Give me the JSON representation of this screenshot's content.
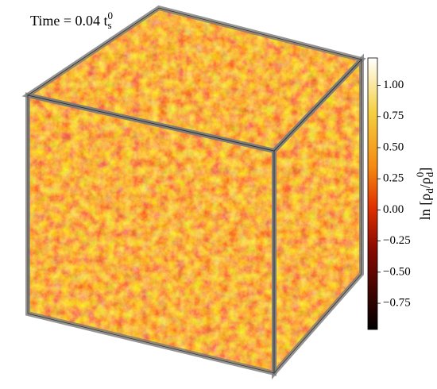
{
  "figure": {
    "title": [
      {
        "text": "Time = 0.04 t"
      },
      {
        "text": "s",
        "script": "sub"
      },
      {
        "text": "0",
        "script": "sup"
      }
    ],
    "colorbar": {
      "label": [
        {
          "text": "ln [ρ"
        },
        {
          "text": "d",
          "script": "sub"
        },
        {
          "text": "/ρ"
        },
        {
          "text": "d",
          "script": "sub"
        },
        {
          "text": "0",
          "script": "sup"
        },
        {
          "text": "]"
        }
      ],
      "range": [
        -0.96,
        1.22
      ],
      "ticks": [
        {
          "value": 1.0,
          "label": "1.00"
        },
        {
          "value": 0.75,
          "label": "0.75"
        },
        {
          "value": 0.5,
          "label": "0.50"
        },
        {
          "value": 0.25,
          "label": "0.25"
        },
        {
          "value": 0.0,
          "label": "0.00"
        },
        {
          "value": -0.25,
          "label": "−0.25"
        },
        {
          "value": -0.5,
          "label": "−0.50"
        },
        {
          "value": -0.75,
          "label": "−0.75"
        }
      ]
    }
  }
}
